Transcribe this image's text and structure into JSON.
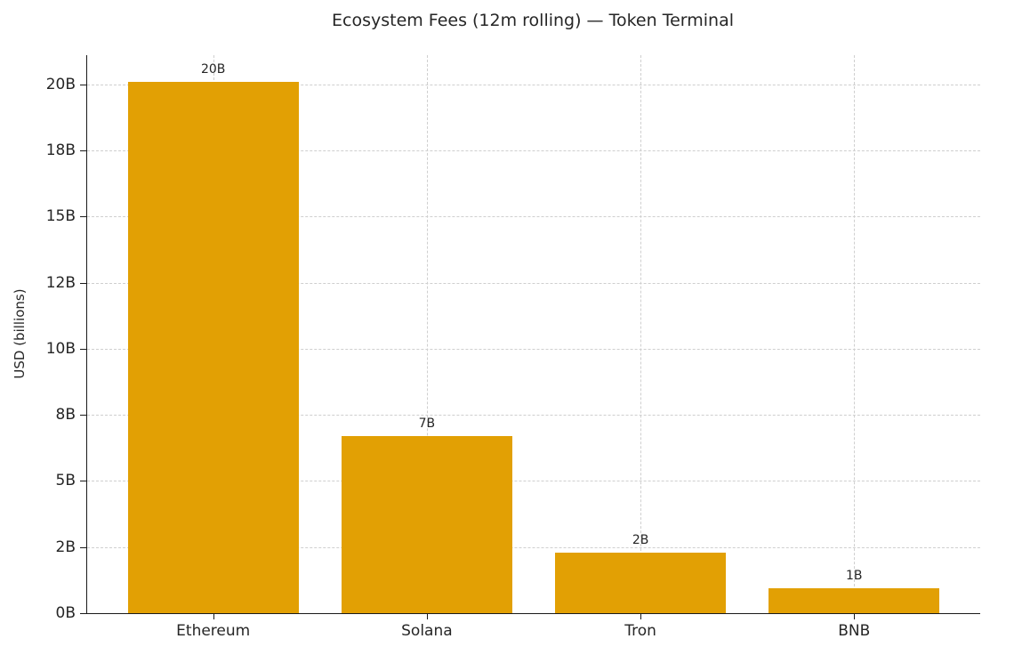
{
  "chart_data": {
    "type": "bar",
    "title": "Ecosystem Fees (12m rolling) — Token Terminal",
    "ylabel": "USD (billions)",
    "xlabel": "",
    "categories": [
      "Ethereum",
      "Solana",
      "Tron",
      "BNB"
    ],
    "values": [
      20.1,
      6.7,
      2.3,
      0.95
    ],
    "bar_labels": [
      "20B",
      "7B",
      "2B",
      "1B"
    ],
    "bar_color": "#E2A004",
    "yticks": [
      0,
      2.5,
      5,
      7.5,
      10,
      12.5,
      15,
      17.5,
      20
    ],
    "ytick_labels": [
      "0B",
      "2B",
      "5B",
      "8B",
      "10B",
      "12B",
      "15B",
      "18B",
      "20B"
    ],
    "ylim": [
      0,
      21.1
    ],
    "grid": true,
    "legend": "none"
  }
}
